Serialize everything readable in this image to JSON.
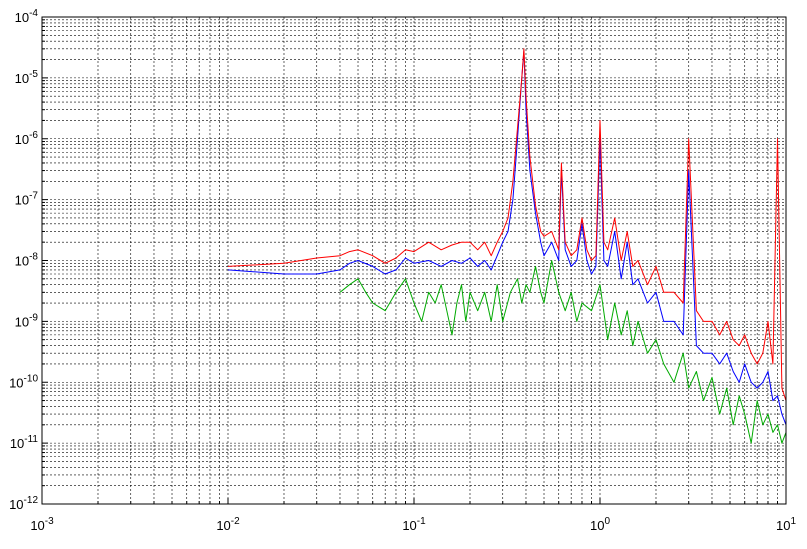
{
  "chart_data": {
    "type": "line",
    "title": "",
    "xlabel": "",
    "ylabel": "",
    "x_scale": "log",
    "y_scale": "log",
    "xlim": [
      0.001,
      10
    ],
    "ylim": [
      1e-12,
      0.0001
    ],
    "grid": true,
    "grid_style": "dotted",
    "x_ticks": [
      {
        "value": 0.001,
        "base": "10",
        "exp": "-3"
      },
      {
        "value": 0.01,
        "base": "10",
        "exp": "-2"
      },
      {
        "value": 0.1,
        "base": "10",
        "exp": "-1"
      },
      {
        "value": 1,
        "base": "10",
        "exp": "0"
      },
      {
        "value": 10,
        "base": "10",
        "exp": "1"
      }
    ],
    "y_ticks": [
      {
        "value": 1e-12,
        "base": "10",
        "exp": "-12"
      },
      {
        "value": 1e-11,
        "base": "10",
        "exp": "-11"
      },
      {
        "value": 1e-10,
        "base": "10",
        "exp": "-10"
      },
      {
        "value": 1e-09,
        "base": "10",
        "exp": "-9"
      },
      {
        "value": 1e-08,
        "base": "10",
        "exp": "-8"
      },
      {
        "value": 1e-07,
        "base": "10",
        "exp": "-7"
      },
      {
        "value": 1e-06,
        "base": "10",
        "exp": "-6"
      },
      {
        "value": 1e-05,
        "base": "10",
        "exp": "-5"
      },
      {
        "value": 0.0001,
        "base": "10",
        "exp": "-4"
      }
    ],
    "series": [
      {
        "color": "#00aa00",
        "x": [
          0.04,
          0.045,
          0.05,
          0.055,
          0.06,
          0.07,
          0.08,
          0.09,
          0.1,
          0.11,
          0.12,
          0.13,
          0.14,
          0.15,
          0.16,
          0.17,
          0.18,
          0.19,
          0.2,
          0.22,
          0.24,
          0.26,
          0.28,
          0.3,
          0.33,
          0.36,
          0.38,
          0.4,
          0.42,
          0.45,
          0.48,
          0.5,
          0.55,
          0.6,
          0.65,
          0.7,
          0.75,
          0.8,
          0.9,
          1.0,
          1.1,
          1.2,
          1.3,
          1.4,
          1.5,
          1.6,
          1.8,
          2.0,
          2.2,
          2.5,
          2.8,
          3.0,
          3.3,
          3.6,
          4.0,
          4.4,
          4.8,
          5.2,
          5.6,
          6.0,
          6.5,
          7.0,
          7.5,
          8.0,
          8.5,
          9.0,
          9.5,
          10.0
        ],
        "y": [
          3e-09,
          4e-09,
          5e-09,
          3e-09,
          2e-09,
          1.5e-09,
          3e-09,
          5e-09,
          2e-09,
          1e-09,
          3e-09,
          2e-09,
          4e-09,
          1.5e-09,
          6e-10,
          2e-09,
          4e-09,
          1e-09,
          3e-09,
          1.5e-09,
          3e-09,
          1e-09,
          4e-09,
          1e-09,
          3e-09,
          5e-09,
          2e-09,
          4e-09,
          3e-09,
          8e-09,
          3e-09,
          2e-09,
          1e-08,
          3e-09,
          1.5e-09,
          3e-09,
          1e-09,
          2e-09,
          1.5e-09,
          4e-09,
          5e-10,
          2e-09,
          6e-10,
          1.5e-09,
          4e-10,
          1e-09,
          3e-10,
          5e-10,
          2e-10,
          1e-10,
          3e-10,
          8e-11,
          1.5e-10,
          5e-11,
          1.2e-10,
          3e-11,
          8e-11,
          2e-11,
          6e-11,
          3e-11,
          1e-11,
          5e-11,
          2e-11,
          3e-11,
          1.5e-11,
          2e-11,
          1e-11,
          1.5e-11
        ]
      },
      {
        "color": "#0000ff",
        "x": [
          0.01,
          0.02,
          0.03,
          0.04,
          0.045,
          0.05,
          0.06,
          0.07,
          0.08,
          0.09,
          0.1,
          0.12,
          0.14,
          0.16,
          0.18,
          0.2,
          0.22,
          0.24,
          0.26,
          0.28,
          0.3,
          0.32,
          0.34,
          0.36,
          0.38,
          0.39,
          0.4,
          0.42,
          0.45,
          0.48,
          0.5,
          0.55,
          0.6,
          0.62,
          0.65,
          0.7,
          0.75,
          0.8,
          0.85,
          0.9,
          0.95,
          1.0,
          1.05,
          1.1,
          1.2,
          1.3,
          1.4,
          1.5,
          1.6,
          1.8,
          2.0,
          2.2,
          2.5,
          2.8,
          3.0,
          3.3,
          3.6,
          4.0,
          4.4,
          4.8,
          5.2,
          5.6,
          6.0,
          6.5,
          7.0,
          7.5,
          8.0,
          8.5,
          9.0,
          9.5,
          10.0
        ],
        "y": [
          7e-09,
          6e-09,
          6e-09,
          7e-09,
          9e-09,
          1e-08,
          8e-09,
          6e-09,
          7e-09,
          1.1e-08,
          9e-09,
          1e-08,
          8e-09,
          1e-08,
          9e-09,
          1.1e-08,
          8e-09,
          1e-08,
          7e-09,
          1.2e-08,
          2e-08,
          3e-08,
          1e-07,
          1e-06,
          1e-05,
          2.8e-05,
          3e-06,
          3e-07,
          6e-08,
          2e-08,
          1.2e-08,
          2e-08,
          1e-08,
          3e-07,
          1.5e-08,
          8e-09,
          1e-08,
          4e-08,
          1e-08,
          6e-09,
          8e-09,
          1e-06,
          1e-08,
          8e-09,
          3e-08,
          5e-09,
          2e-08,
          4e-09,
          5e-09,
          2e-09,
          3e-09,
          1e-09,
          1e-09,
          6e-10,
          3e-07,
          4e-10,
          3e-10,
          3e-10,
          2e-10,
          3e-10,
          1.5e-10,
          1e-10,
          2e-10,
          1e-10,
          8e-11,
          1e-10,
          1.5e-10,
          5e-11,
          6e-11,
          3e-11,
          2e-11
        ]
      },
      {
        "color": "#ff0000",
        "x": [
          0.01,
          0.02,
          0.03,
          0.04,
          0.045,
          0.05,
          0.06,
          0.07,
          0.08,
          0.09,
          0.1,
          0.12,
          0.14,
          0.16,
          0.18,
          0.2,
          0.22,
          0.24,
          0.26,
          0.28,
          0.3,
          0.32,
          0.34,
          0.36,
          0.38,
          0.39,
          0.4,
          0.42,
          0.45,
          0.48,
          0.5,
          0.55,
          0.6,
          0.62,
          0.65,
          0.7,
          0.75,
          0.8,
          0.85,
          0.9,
          0.95,
          1.0,
          1.05,
          1.1,
          1.2,
          1.3,
          1.4,
          1.5,
          1.6,
          1.8,
          2.0,
          2.2,
          2.5,
          2.8,
          3.0,
          3.3,
          3.6,
          4.0,
          4.4,
          4.8,
          5.2,
          5.6,
          6.0,
          6.5,
          7.0,
          7.5,
          8.0,
          8.5,
          9.0,
          9.5,
          10.0
        ],
        "y": [
          8e-09,
          9e-09,
          1.1e-08,
          1.2e-08,
          1.4e-08,
          1.5e-08,
          1.2e-08,
          9e-09,
          1.1e-08,
          1.5e-08,
          1.4e-08,
          2e-08,
          1.5e-08,
          1.8e-08,
          2e-08,
          2e-08,
          1.5e-08,
          2e-08,
          1.2e-08,
          2e-08,
          3e-08,
          5e-08,
          2e-07,
          1.5e-06,
          1e-05,
          3e-05,
          5e-06,
          5e-07,
          8e-08,
          3e-08,
          2.5e-08,
          3e-08,
          1.5e-08,
          4e-07,
          2e-08,
          1.2e-08,
          1.5e-08,
          5e-08,
          1.5e-08,
          1e-08,
          1.2e-08,
          2e-06,
          2e-08,
          1.5e-08,
          5e-08,
          1e-08,
          3e-08,
          8e-09,
          1e-08,
          4e-09,
          8e-09,
          3e-09,
          3e-09,
          2e-09,
          1e-06,
          1.5e-09,
          1e-09,
          1e-09,
          6e-10,
          1e-09,
          5e-10,
          4e-10,
          6e-10,
          3e-10,
          2e-10,
          3e-10,
          1e-09,
          2e-10,
          1e-06,
          8e-11,
          5e-11
        ]
      }
    ]
  }
}
